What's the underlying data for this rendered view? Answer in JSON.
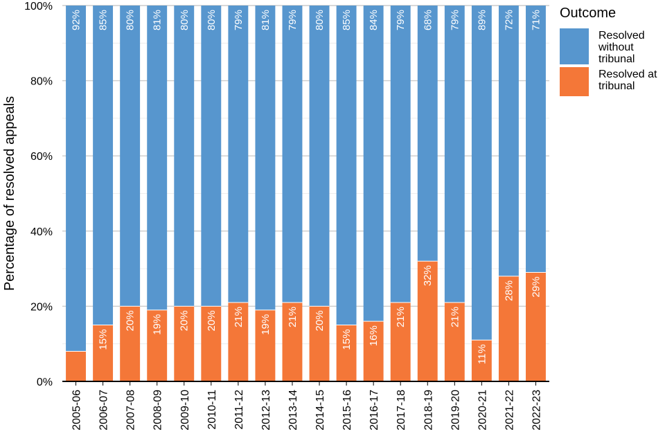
{
  "chart_data": {
    "type": "bar",
    "stacked": true,
    "ylabel": "Percentage of resolved appeals",
    "xlabel": "",
    "ylim": [
      0,
      100
    ],
    "yticks": [
      "0%",
      "20%",
      "40%",
      "60%",
      "80%",
      "100%"
    ],
    "grid": true,
    "legend_position": "top-right",
    "legend_title": "Outcome",
    "categories": [
      "2005-06",
      "2006-07",
      "2007-08",
      "2008-09",
      "2009-10",
      "2010-11",
      "2011-12",
      "2012-13",
      "2013-14",
      "2014-15",
      "2015-16",
      "2016-17",
      "2017-18",
      "2018-19",
      "2019-20",
      "2020-21",
      "2021-22",
      "2022-23"
    ],
    "series": [
      {
        "name": "Resolved without tribunal",
        "color": "#5796ce",
        "values": [
          92,
          85,
          80,
          81,
          80,
          80,
          79,
          81,
          79,
          80,
          85,
          84,
          79,
          68,
          79,
          89,
          72,
          71
        ],
        "labels": [
          "92%",
          "85%",
          "80%",
          "81%",
          "80%",
          "80%",
          "79%",
          "81%",
          "79%",
          "80%",
          "85%",
          "84%",
          "79%",
          "68%",
          "79%",
          "89%",
          "72%",
          "71%"
        ]
      },
      {
        "name": "Resolved at tribunal",
        "color": "#f47738",
        "values": [
          8,
          15,
          20,
          19,
          20,
          20,
          21,
          19,
          21,
          20,
          15,
          16,
          21,
          32,
          21,
          11,
          28,
          29
        ],
        "labels": [
          "",
          "15%",
          "20%",
          "19%",
          "20%",
          "20%",
          "21%",
          "19%",
          "21%",
          "20%",
          "15%",
          "16%",
          "21%",
          "32%",
          "21%",
          "11%",
          "28%",
          "29%"
        ]
      }
    ]
  },
  "legend": {
    "title": "Outcome",
    "items": [
      {
        "label_line1": "Resolved",
        "label_line2": "without",
        "label_line3": "tribunal",
        "color": "#5796ce"
      },
      {
        "label_line1": "Resolved at",
        "label_line2": "tribunal",
        "label_line3": "",
        "color": "#f47738"
      }
    ]
  }
}
